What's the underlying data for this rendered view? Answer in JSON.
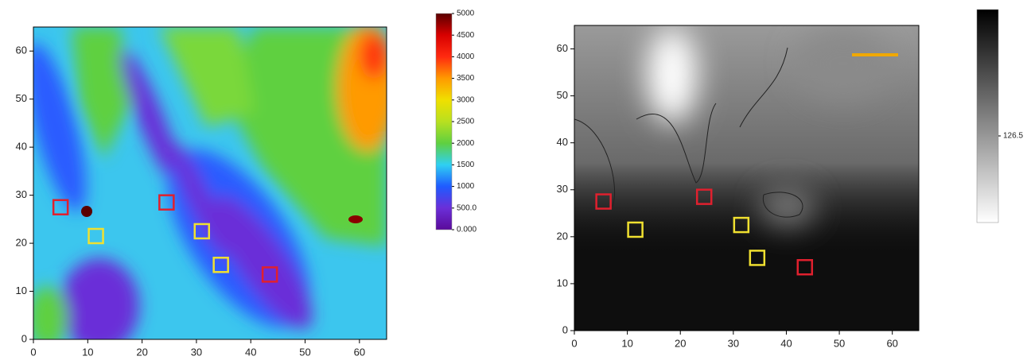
{
  "chart_data": [
    {
      "type": "heatmap",
      "xlim": [
        0,
        65
      ],
      "xticks": [
        0,
        10,
        20,
        30,
        40,
        50,
        60
      ],
      "ylim": [
        0,
        65
      ],
      "yticks": [
        0,
        10,
        20,
        30,
        40,
        50,
        60
      ],
      "colorbar": {
        "zlim": [
          0,
          5000
        ],
        "ticks": [
          5000,
          4500,
          4000,
          3500,
          3000,
          2500,
          2000,
          1500,
          1000,
          {
            "value": 500,
            "label": "500.0"
          },
          {
            "value": 0,
            "label": "0.000"
          }
        ],
        "colormap": [
          "#5a0a9a",
          "#6b2fd8",
          "#1f5bff",
          "#2fd0f2",
          "#5fd040",
          "#b8e020",
          "#f0e000",
          "#ff9a00",
          "#ff2a10",
          "#d80000",
          "#5a0000"
        ]
      },
      "markers": [
        {
          "x": 5,
          "y": 27.5,
          "color": "#e0202e"
        },
        {
          "x": 24.5,
          "y": 28.5,
          "color": "#e0202e"
        },
        {
          "x": 43.5,
          "y": 13.5,
          "color": "#e0202e"
        },
        {
          "x": 11.5,
          "y": 21.5,
          "color": "#f0e030"
        },
        {
          "x": 31,
          "y": 22.5,
          "color": "#f0e030"
        },
        {
          "x": 34.5,
          "y": 15.5,
          "color": "#f0e030"
        }
      ]
    },
    {
      "type": "heatmap",
      "xlim": [
        0,
        65
      ],
      "xticks": [
        0,
        10,
        20,
        30,
        40,
        50,
        60
      ],
      "ylim": [
        0,
        65
      ],
      "yticks": [
        0,
        10,
        20,
        30,
        40,
        50,
        60
      ],
      "colorbar": {
        "zlim": [
          0,
          311
        ],
        "ticks": [
          126.5
        ],
        "colormap": [
          "#ffffff",
          "#000000"
        ]
      },
      "markers": [
        {
          "x": 5.5,
          "y": 27.5,
          "color": "#e0202e"
        },
        {
          "x": 24.5,
          "y": 28.5,
          "color": "#e0202e"
        },
        {
          "x": 43.5,
          "y": 13.5,
          "color": "#e0202e"
        },
        {
          "x": 11.5,
          "y": 21.5,
          "color": "#f0e030"
        },
        {
          "x": 31.5,
          "y": 22.5,
          "color": "#f0e030"
        },
        {
          "x": 34.5,
          "y": 15.5,
          "color": "#f0e030"
        }
      ]
    }
  ]
}
